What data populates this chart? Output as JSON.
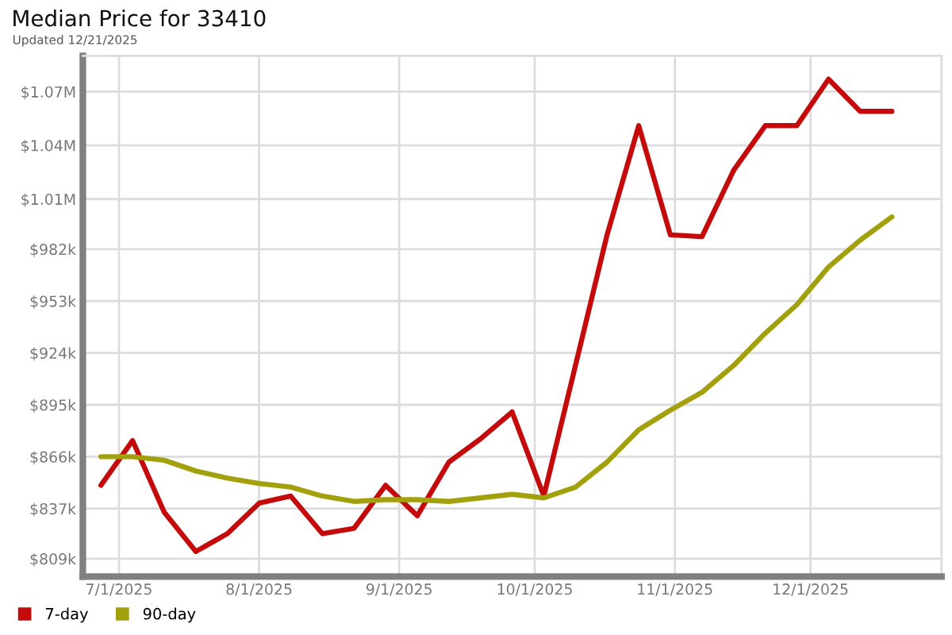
{
  "chart_data": {
    "type": "line",
    "title": "Median Price for 33410",
    "subtitle": "Updated 12/21/2025",
    "x": [
      "2025-06-27",
      "2025-07-04",
      "2025-07-11",
      "2025-07-18",
      "2025-07-25",
      "2025-08-01",
      "2025-08-08",
      "2025-08-15",
      "2025-08-22",
      "2025-08-29",
      "2025-09-05",
      "2025-09-12",
      "2025-09-19",
      "2025-09-26",
      "2025-10-03",
      "2025-10-10",
      "2025-10-17",
      "2025-10-24",
      "2025-10-31",
      "2025-11-07",
      "2025-11-14",
      "2025-11-21",
      "2025-11-28",
      "2025-12-05",
      "2025-12-12",
      "2025-12-19"
    ],
    "series": [
      {
        "name": "7-day",
        "color": "#c40a0a",
        "values": [
          850000,
          875000,
          835000,
          813000,
          823000,
          840000,
          844000,
          823000,
          826000,
          850000,
          833000,
          863000,
          876000,
          891000,
          844000,
          917000,
          990000,
          1051000,
          990000,
          989000,
          1026000,
          1051000,
          1051000,
          1077000,
          1059000,
          1059000
        ]
      },
      {
        "name": "90-day",
        "color": "#a3a00e",
        "values": [
          866000,
          866000,
          864000,
          858000,
          854000,
          851000,
          849000,
          844000,
          841000,
          842000,
          842000,
          841000,
          843000,
          845000,
          843000,
          849000,
          863000,
          881000,
          892000,
          902000,
          917000,
          935000,
          951000,
          972000,
          987000,
          1000000
        ]
      }
    ],
    "xlim": [
      "2025-06-23",
      "2025-12-30"
    ],
    "xticks": [
      {
        "value": "2025-07-01",
        "label": "7/1/2025"
      },
      {
        "value": "2025-08-01",
        "label": "8/1/2025"
      },
      {
        "value": "2025-09-01",
        "label": "9/1/2025"
      },
      {
        "value": "2025-10-01",
        "label": "10/1/2025"
      },
      {
        "value": "2025-11-01",
        "label": "11/1/2025"
      },
      {
        "value": "2025-12-01",
        "label": "12/1/2025"
      }
    ],
    "ylim": [
      799000,
      1090000
    ],
    "yticks": [
      {
        "value": 809000,
        "label": "$809k"
      },
      {
        "value": 837000,
        "label": "$837k"
      },
      {
        "value": 866000,
        "label": "$866k"
      },
      {
        "value": 895000,
        "label": "$895k"
      },
      {
        "value": 924000,
        "label": "$924k"
      },
      {
        "value": 953000,
        "label": "$953k"
      },
      {
        "value": 982000,
        "label": "$982k"
      },
      {
        "value": 1010000,
        "label": "$1.01M"
      },
      {
        "value": 1040000,
        "label": "$1.04M"
      },
      {
        "value": 1070000,
        "label": "$1.07M"
      }
    ],
    "grid": true,
    "legend": "bottom left"
  }
}
